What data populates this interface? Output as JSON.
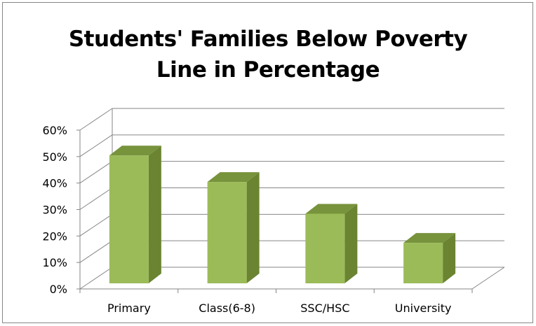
{
  "chart_data": {
    "type": "bar",
    "title": "Students' Families Below Poverty Line in Percentage",
    "title_lines": [
      "Students' Families Below Poverty",
      "Line in Percentage"
    ],
    "categories": [
      "Primary",
      "Class(6-8)",
      "SSC/HSC",
      "University"
    ],
    "values": [
      0.52,
      0.42,
      0.3,
      0.19
    ],
    "ylim": [
      0,
      0.6
    ],
    "y_ticks": [
      {
        "value": 0,
        "label": "0%"
      },
      {
        "value": 0.1,
        "label": "10%"
      },
      {
        "value": 0.2,
        "label": "20%"
      },
      {
        "value": 0.3,
        "label": "30%"
      },
      {
        "value": 0.4,
        "label": "40%"
      },
      {
        "value": 0.5,
        "label": "50%"
      },
      {
        "value": 0.6,
        "label": "60%"
      }
    ],
    "grid": true,
    "legend": "none",
    "style": "3d-column"
  },
  "colors": {
    "bar_front": "#9bbb59",
    "bar_top": "#77933c",
    "bar_side": "#6a8431",
    "gridline": "#868686"
  }
}
